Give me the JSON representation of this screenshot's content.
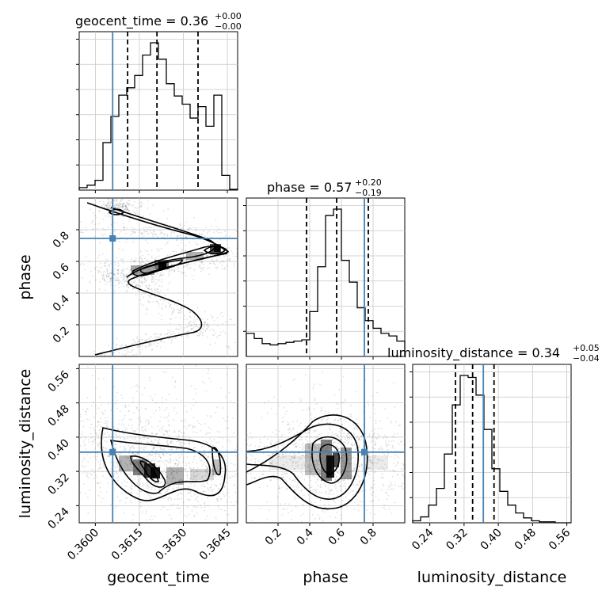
{
  "chart_data": {
    "type": "corner",
    "parameters": [
      "geocent_time",
      "phase",
      "luminosity_distance"
    ],
    "truth_color": "#4682b4",
    "truths": {
      "geocent_time": 0.36059,
      "phase": 0.745,
      "luminosity_distance": 0.365
    },
    "titles": {
      "geocent_time": {
        "label": "geocent_time = 0.36",
        "sup": "+0.00",
        "sub": "−0.00"
      },
      "phase": {
        "label": "phase = 0.57",
        "sup": "+0.20",
        "sub": "−0.19"
      },
      "luminosity_distance": {
        "label": "luminosity_distance = 0.34",
        "sup": "+0.05",
        "sub": "−0.04"
      }
    },
    "axes": {
      "geocent_time": {
        "lim": [
          0.35945,
          0.36485
        ],
        "ticks": [
          0.36,
          0.3615,
          0.363,
          0.3645
        ],
        "tick_labels": [
          "0.3600",
          "0.3615",
          "0.3630",
          "0.3645"
        ],
        "xlabel": "geocent_time"
      },
      "phase": {
        "lim": [
          0.0,
          1.0
        ],
        "ticks": [
          0.2,
          0.4,
          0.6,
          0.8
        ],
        "tick_labels": [
          "0.2",
          "0.4",
          "0.6",
          "0.8"
        ],
        "xlabel": "phase",
        "ylabel": "phase"
      },
      "luminosity_distance": {
        "lim": [
          0.2,
          0.57
        ],
        "ticks": [
          0.24,
          0.32,
          0.4,
          0.48,
          0.56
        ],
        "tick_labels": [
          "0.24",
          "0.32",
          "0.40",
          "0.48",
          "0.56"
        ],
        "xlabel": "luminosity_distance",
        "ylabel": "luminosity_distance"
      }
    },
    "histograms": {
      "geocent_time": {
        "bin_edges": [
          0.35945,
          0.35972,
          0.35999,
          0.36026,
          0.36053,
          0.3608,
          0.36107,
          0.36134,
          0.36161,
          0.36188,
          0.36215,
          0.36242,
          0.36269,
          0.36296,
          0.36323,
          0.3635,
          0.36377,
          0.36404,
          0.36431,
          0.36458,
          0.36485
        ],
        "counts": [
          3,
          6,
          12,
          58,
          90,
          116,
          125,
          140,
          165,
          180,
          160,
          130,
          115,
          105,
          88,
          102,
          78,
          116,
          18,
          1
        ],
        "quantiles": [
          0.3611,
          0.3621,
          0.3635
        ]
      },
      "phase": {
        "bin_edges": [
          0.0,
          0.05,
          0.1,
          0.15,
          0.2,
          0.25,
          0.3,
          0.35,
          0.4,
          0.45,
          0.5,
          0.55,
          0.6,
          0.65,
          0.7,
          0.75,
          0.8,
          0.85,
          0.9,
          0.95,
          1.0
        ],
        "counts": [
          18,
          14,
          10,
          9,
          10,
          11,
          12,
          13,
          35,
          70,
          110,
          115,
          75,
          58,
          38,
          28,
          22,
          18,
          16,
          12
        ],
        "quantiles": [
          0.38,
          0.57,
          0.77
        ]
      },
      "luminosity_distance": {
        "bin_edges": [
          0.2,
          0.2185,
          0.237,
          0.2555,
          0.274,
          0.2925,
          0.311,
          0.3295,
          0.348,
          0.3665,
          0.385,
          0.4035,
          0.422,
          0.4405,
          0.459,
          0.4775,
          0.496,
          0.5145,
          0.533,
          0.5515,
          0.57
        ],
        "counts": [
          2,
          6,
          18,
          35,
          70,
          120,
          150,
          148,
          130,
          95,
          55,
          32,
          18,
          10,
          5,
          2,
          1,
          1,
          0,
          0
        ],
        "quantiles": [
          0.3,
          0.34,
          0.39
        ]
      }
    }
  }
}
